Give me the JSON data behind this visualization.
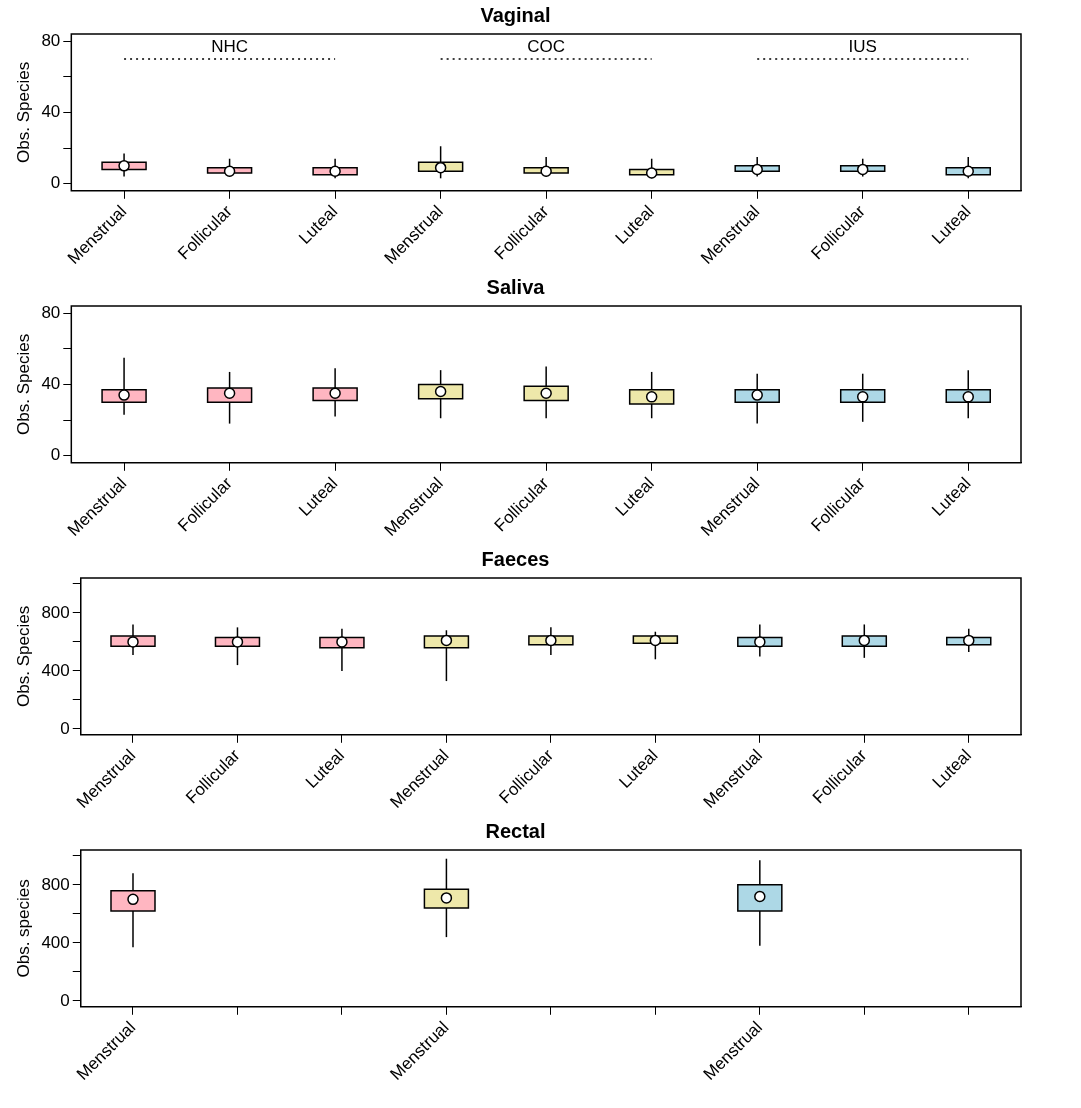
{
  "chart_data": [
    {
      "type": "box",
      "title": "Vaginal",
      "ylabel": "Obs. Species",
      "categories": [
        "Menstrual",
        "Follicular",
        "Luteal",
        "Menstrual",
        "Follicular",
        "Luteal",
        "Menstrual",
        "Follicular",
        "Luteal"
      ],
      "colors": [
        "#ffb6c1",
        "#ffb6c1",
        "#ffb6c1",
        "#eee8aa",
        "#eee8aa",
        "#eee8aa",
        "#add8e6",
        "#add8e6",
        "#add8e6"
      ],
      "ylim": [
        -4,
        84
      ],
      "yticks": [
        0,
        {
          "value": 20,
          "label": null
        },
        40,
        {
          "value": 60,
          "label": null
        },
        80
      ],
      "annotations": [
        "NHC",
        "COC",
        "IUS"
      ],
      "series": [
        {
          "type": "line",
          "color": "#000000",
          "line_style": "dotted",
          "marker": "none",
          "values": [
            70,
            70,
            70,
            null,
            null,
            null,
            null,
            null,
            null
          ]
        },
        {
          "type": "line",
          "color": "#000000",
          "line_style": "dotted",
          "marker": "none",
          "values": [
            null,
            null,
            null,
            70,
            70,
            70,
            null,
            null,
            null
          ]
        },
        {
          "type": "line",
          "color": "#000000",
          "line_style": "dotted",
          "marker": "none",
          "values": [
            null,
            null,
            null,
            null,
            null,
            null,
            70,
            70,
            70
          ]
        }
      ],
      "boxes": [
        {
          "low": 4,
          "q1": 8,
          "median": 10,
          "q3": 12,
          "high": 17
        },
        {
          "low": 4,
          "q1": 6,
          "median": 7,
          "q3": 9,
          "high": 14
        },
        {
          "low": 3,
          "q1": 5,
          "median": 7,
          "q3": 9,
          "high": 14
        },
        {
          "low": 3,
          "q1": 7,
          "median": 9,
          "q3": 12,
          "high": 21
        },
        {
          "low": 4,
          "q1": 6,
          "median": 7,
          "q3": 9,
          "high": 15
        },
        {
          "low": 3,
          "q1": 5,
          "median": 6,
          "q3": 8,
          "high": 14
        },
        {
          "low": 4,
          "q1": 7,
          "median": 8,
          "q3": 10,
          "high": 15
        },
        {
          "low": 4,
          "q1": 7,
          "median": 8,
          "q3": 10,
          "high": 14
        },
        {
          "low": 3,
          "q1": 5,
          "median": 7,
          "q3": 9,
          "high": 15
        }
      ]
    },
    {
      "type": "box",
      "title": "Saliva",
      "ylabel": "Obs. Species",
      "categories": [
        "Menstrual",
        "Follicular",
        "Luteal",
        "Menstrual",
        "Follicular",
        "Luteal",
        "Menstrual",
        "Follicular",
        "Luteal"
      ],
      "colors": [
        "#ffb6c1",
        "#ffb6c1",
        "#ffb6c1",
        "#eee8aa",
        "#eee8aa",
        "#eee8aa",
        "#add8e6",
        "#add8e6",
        "#add8e6"
      ],
      "ylim": [
        -4,
        84
      ],
      "yticks": [
        0,
        {
          "value": 20,
          "label": null
        },
        40,
        {
          "value": 60,
          "label": null
        },
        80
      ],
      "boxes": [
        {
          "low": 23,
          "q1": 30,
          "median": 34,
          "q3": 37,
          "high": 55
        },
        {
          "low": 18,
          "q1": 30,
          "median": 35,
          "q3": 38,
          "high": 47
        },
        {
          "low": 22,
          "q1": 31,
          "median": 35,
          "q3": 38,
          "high": 49
        },
        {
          "low": 21,
          "q1": 32,
          "median": 36,
          "q3": 40,
          "high": 48
        },
        {
          "low": 21,
          "q1": 31,
          "median": 35,
          "q3": 39,
          "high": 50
        },
        {
          "low": 21,
          "q1": 29,
          "median": 33,
          "q3": 37,
          "high": 47
        },
        {
          "low": 18,
          "q1": 30,
          "median": 34,
          "q3": 37,
          "high": 46
        },
        {
          "low": 19,
          "q1": 30,
          "median": 33,
          "q3": 37,
          "high": 46
        },
        {
          "low": 21,
          "q1": 30,
          "median": 33,
          "q3": 37,
          "high": 48
        }
      ]
    },
    {
      "type": "box",
      "title": "Faeces",
      "ylabel": "Obs. Species",
      "categories": [
        "Menstrual",
        "Follicular",
        "Luteal",
        "Menstrual",
        "Follicular",
        "Luteal",
        "Menstrual",
        "Follicular",
        "Luteal"
      ],
      "colors": [
        "#ffb6c1",
        "#ffb6c1",
        "#ffb6c1",
        "#eee8aa",
        "#eee8aa",
        "#eee8aa",
        "#add8e6",
        "#add8e6",
        "#add8e6"
      ],
      "ylim": [
        -40,
        1040
      ],
      "yticks": [
        0,
        {
          "value": 200,
          "label": null
        },
        400,
        {
          "value": 600,
          "label": null
        },
        800,
        {
          "value": 1000,
          "label": null
        }
      ],
      "boxes": [
        {
          "low": 510,
          "q1": 570,
          "median": 600,
          "q3": 640,
          "high": 720
        },
        {
          "low": 440,
          "q1": 570,
          "median": 600,
          "q3": 630,
          "high": 700
        },
        {
          "low": 400,
          "q1": 560,
          "median": 600,
          "q3": 630,
          "high": 690
        },
        {
          "low": 330,
          "q1": 560,
          "median": 610,
          "q3": 640,
          "high": 680
        },
        {
          "low": 510,
          "q1": 580,
          "median": 610,
          "q3": 640,
          "high": 700
        },
        {
          "low": 480,
          "q1": 590,
          "median": 610,
          "q3": 640,
          "high": 670
        },
        {
          "low": 500,
          "q1": 570,
          "median": 600,
          "q3": 630,
          "high": 720
        },
        {
          "low": 490,
          "q1": 570,
          "median": 610,
          "q3": 640,
          "high": 720
        },
        {
          "low": 530,
          "q1": 580,
          "median": 610,
          "q3": 630,
          "high": 690
        }
      ]
    },
    {
      "type": "box",
      "title": "Rectal",
      "ylabel": "Obs. species",
      "categories": [
        "Menstrual",
        null,
        null,
        "Menstrual",
        null,
        null,
        "Menstrual",
        null,
        null
      ],
      "colors": [
        "#ffb6c1",
        null,
        null,
        "#eee8aa",
        null,
        null,
        "#add8e6",
        null,
        null
      ],
      "ylim": [
        -40,
        1040
      ],
      "yticks": [
        0,
        {
          "value": 200,
          "label": null
        },
        400,
        {
          "value": 600,
          "label": null
        },
        800,
        {
          "value": 1000,
          "label": null
        }
      ],
      "boxes": [
        {
          "low": 370,
          "q1": 620,
          "median": 700,
          "q3": 760,
          "high": 880
        },
        null,
        null,
        {
          "low": 440,
          "q1": 640,
          "median": 710,
          "q3": 770,
          "high": 980
        },
        null,
        null,
        {
          "low": 380,
          "q1": 620,
          "median": 720,
          "q3": 800,
          "high": 970
        },
        null,
        null
      ]
    }
  ]
}
